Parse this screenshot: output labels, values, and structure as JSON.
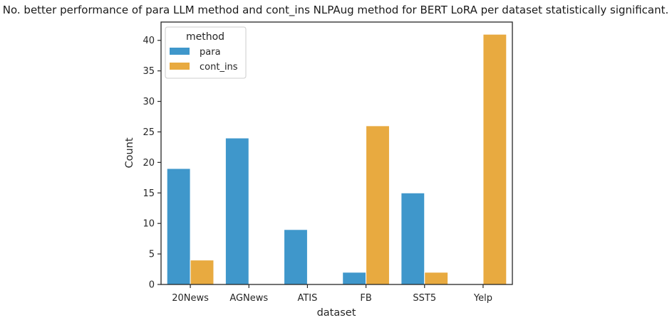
{
  "chart_data": {
    "type": "bar",
    "title": "No. better performance of para LLM method and cont_ins NLPAug method for BERT LoRA per dataset statistically significant.",
    "xlabel": "dataset",
    "ylabel": "Count",
    "categories": [
      "20News",
      "AGNews",
      "ATIS",
      "FB",
      "SST5",
      "Yelp"
    ],
    "series": [
      {
        "name": "para",
        "color": "#3f97cb",
        "values": [
          19,
          24,
          9,
          2,
          15,
          0
        ]
      },
      {
        "name": "cont_ins",
        "color": "#e8aa40",
        "values": [
          4,
          0,
          0,
          26,
          2,
          41
        ]
      }
    ],
    "ylim": [
      0,
      43
    ],
    "yticks": [
      0,
      5,
      10,
      15,
      20,
      25,
      30,
      35,
      40
    ],
    "grid": false,
    "legend": {
      "title": "method",
      "position": "top-left"
    }
  }
}
